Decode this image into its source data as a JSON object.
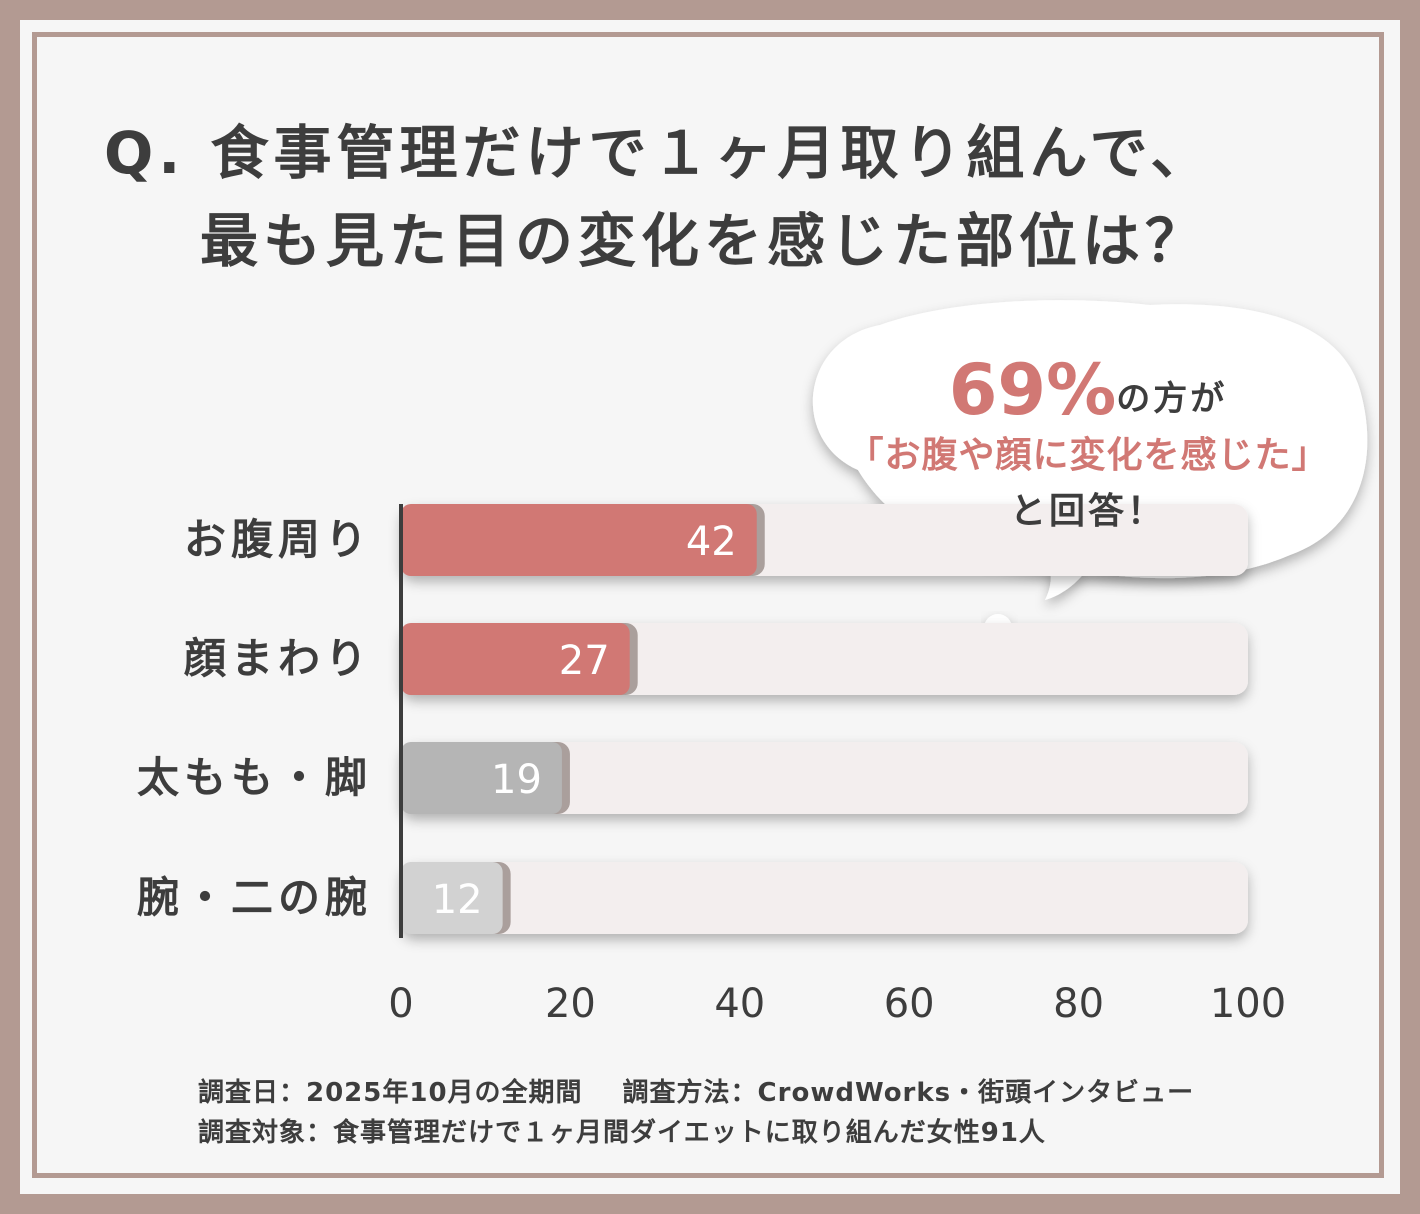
{
  "title": {
    "line1": "Q. 食事管理だけで１ヶ月取り組んで、",
    "line2": "最も見た目の変化を感じた部位は？"
  },
  "callout": {
    "percent": "69%",
    "line1_suffix": "の方が",
    "line2": "「お腹や顔に変化を感じた」",
    "line3": "と回答！"
  },
  "footer": {
    "date": "調査日：2025年10月の全期間",
    "method": "調査方法：CrowdWorks・街頭インタビュー",
    "target": "調査対象：食事管理だけで１ヶ月間ダイエットに取り組んだ女性91人"
  },
  "colors": {
    "accent": "#d17874",
    "bar_gray": "#b5b5b5",
    "bar_light_gray": "#d2d2d2",
    "track": "#f3eeee",
    "frame": "#b39a92"
  },
  "chart_data": {
    "type": "bar",
    "orientation": "horizontal",
    "categories": [
      "お腹周り",
      "顔まわり",
      "太もも・脚",
      "腕・二の腕"
    ],
    "values": [
      42,
      27,
      19,
      12
    ],
    "value_labels": [
      "42",
      "27",
      "19",
      "12"
    ],
    "bar_colors": [
      "#d17874",
      "#d17874",
      "#b5b5b5",
      "#d2d2d2"
    ],
    "xlim": [
      0,
      100
    ],
    "xticks": [
      "0",
      "20",
      "40",
      "60",
      "80",
      "100"
    ],
    "grid": false,
    "xlabel": "",
    "ylabel": ""
  }
}
